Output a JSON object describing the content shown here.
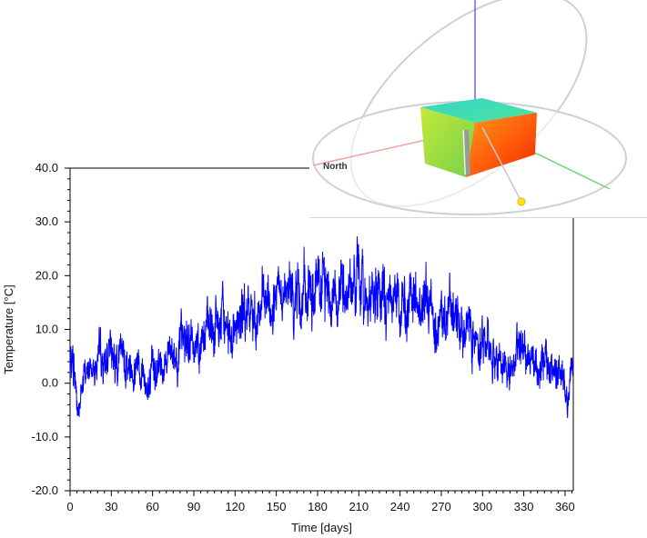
{
  "chart_data": {
    "type": "line",
    "title": "",
    "xlabel": "Time [days]",
    "ylabel": "Temperature [°C]",
    "xlim": [
      0,
      366
    ],
    "ylim": [
      -20,
      40
    ],
    "xticks": [
      0,
      30,
      60,
      90,
      120,
      150,
      180,
      210,
      240,
      270,
      300,
      330,
      360
    ],
    "yticks": [
      -20.0,
      -10.0,
      0.0,
      10.0,
      20.0,
      30.0,
      40.0
    ],
    "ytick_labels": [
      "-20.0",
      "-10.0",
      "0.0",
      "10.0",
      "20.0",
      "30.0",
      "40.0"
    ],
    "grid": false,
    "series": [
      {
        "color": "#0000ff",
        "x": [
          0,
          2,
          4,
          6,
          8,
          10,
          15,
          20,
          25,
          30,
          35,
          40,
          45,
          50,
          55,
          58,
          62,
          65,
          70,
          75,
          80,
          85,
          90,
          95,
          100,
          105,
          110,
          115,
          120,
          125,
          130,
          135,
          140,
          145,
          150,
          155,
          160,
          165,
          170,
          175,
          180,
          185,
          190,
          195,
          200,
          205,
          210,
          215,
          220,
          225,
          230,
          235,
          240,
          245,
          250,
          255,
          260,
          265,
          270,
          275,
          280,
          285,
          290,
          295,
          300,
          305,
          310,
          315,
          320,
          325,
          330,
          335,
          340,
          345,
          350,
          355,
          358,
          362,
          366
        ],
        "y": [
          2,
          5,
          0,
          -6,
          -2,
          1,
          3,
          4,
          3,
          6,
          5,
          4,
          3,
          5,
          1,
          -2,
          4,
          3,
          5,
          6,
          6,
          8,
          8,
          9,
          9,
          10,
          11,
          10,
          11,
          12,
          12,
          13,
          14,
          14,
          15,
          15,
          16,
          17,
          17,
          16,
          17,
          18,
          18,
          17,
          18,
          18,
          19,
          17,
          16,
          16,
          15,
          16,
          15,
          14,
          15,
          14,
          15,
          13,
          12,
          13,
          12,
          11,
          11,
          10,
          8,
          7,
          5,
          3,
          3,
          5,
          7,
          5,
          4,
          3,
          3,
          2,
          1,
          -4,
          4
        ],
        "amplitude": [
          4,
          4,
          4,
          3,
          3,
          3,
          3,
          4,
          4,
          4,
          4,
          4,
          4,
          4,
          4,
          4,
          4,
          4,
          4,
          4,
          5,
          5,
          5,
          5,
          5,
          5,
          5,
          5,
          5,
          5,
          5,
          5,
          5,
          5,
          5,
          5,
          6,
          6,
          6,
          6,
          6,
          6,
          6,
          6,
          6,
          6,
          6,
          6,
          6,
          6,
          6,
          5,
          5,
          5,
          5,
          5,
          5,
          5,
          5,
          5,
          5,
          5,
          5,
          5,
          5,
          5,
          4,
          4,
          4,
          4,
          4,
          4,
          4,
          4,
          4,
          4,
          4,
          3,
          3
        ]
      }
    ]
  },
  "scene": {
    "north_label": "North"
  }
}
